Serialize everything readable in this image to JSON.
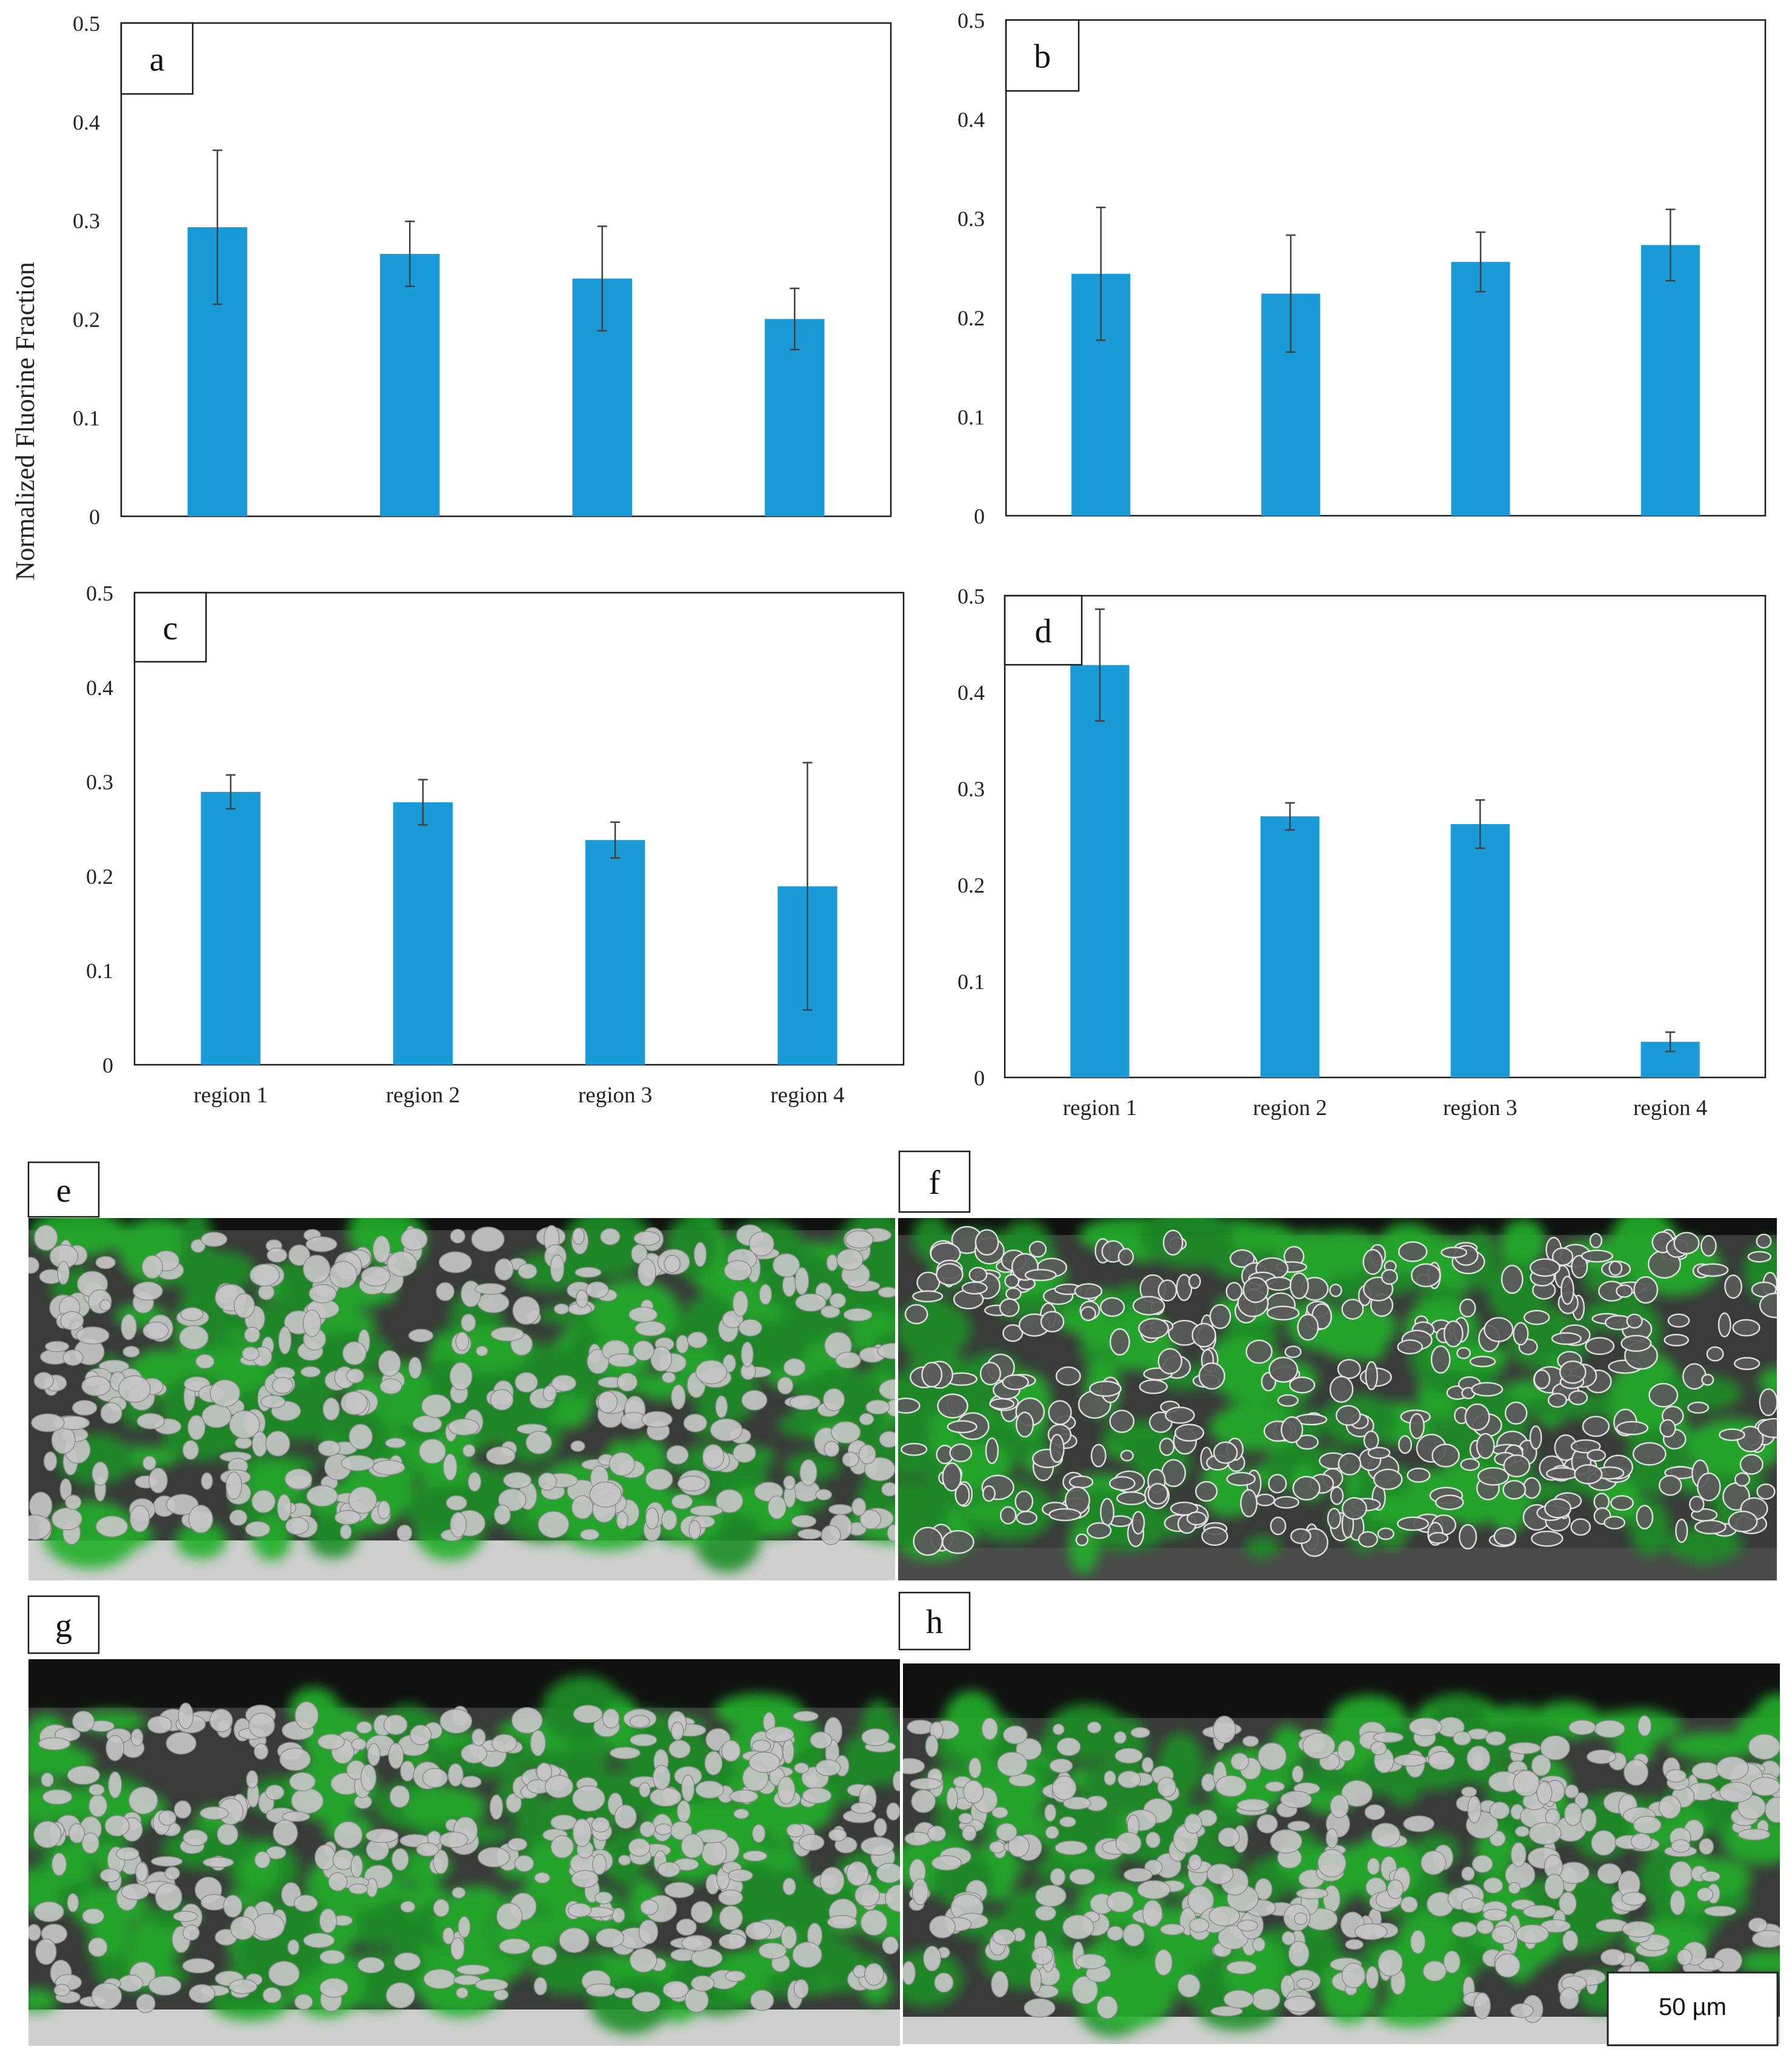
{
  "figure": {
    "ylabel": "Normalized Fluorine Fraction",
    "scalebar_label": "50 µm"
  },
  "colors": {
    "bar": "#1a9ad6",
    "frame": "#1a1a1a",
    "error_bar": "#404040",
    "overlay_green": "#23b02a",
    "particle": "#c6c6c6",
    "sem_background": "#3a3a3a"
  },
  "chart_data": [
    {
      "type": "bar",
      "panel": "a",
      "categories": [
        "region 1",
        "region 2",
        "region 3",
        "region 4"
      ],
      "values": [
        0.293,
        0.266,
        0.241,
        0.2
      ],
      "errors": [
        0.078,
        0.033,
        0.053,
        0.031
      ],
      "ylim": [
        0,
        0.5
      ],
      "yticks": [
        "0",
        "0.1",
        "0.2",
        "0.3",
        "0.4",
        "0.5"
      ],
      "show_category_labels": false,
      "grid": false
    },
    {
      "type": "bar",
      "panel": "b",
      "categories": [
        "region 1",
        "region 2",
        "region 3",
        "region 4"
      ],
      "values": [
        0.244,
        0.224,
        0.256,
        0.273
      ],
      "errors": [
        0.067,
        0.059,
        0.03,
        0.036
      ],
      "ylim": [
        0,
        0.5
      ],
      "yticks": [
        "0",
        "0.1",
        "0.2",
        "0.3",
        "0.4",
        "0.5"
      ],
      "show_category_labels": false,
      "grid": false
    },
    {
      "type": "bar",
      "panel": "c",
      "categories": [
        "region 1",
        "region 2",
        "region 3",
        "region 4"
      ],
      "values": [
        0.289,
        0.278,
        0.238,
        0.189
      ],
      "errors": [
        0.018,
        0.024,
        0.019,
        0.131
      ],
      "ylim": [
        0,
        0.5
      ],
      "yticks": [
        "0",
        "0.1",
        "0.2",
        "0.3",
        "0.4",
        "0.5"
      ],
      "show_category_labels": true,
      "grid": false
    },
    {
      "type": "bar",
      "panel": "d",
      "categories": [
        "region 1",
        "region 2",
        "region 3",
        "region 4"
      ],
      "values": [
        0.428,
        0.271,
        0.263,
        0.037
      ],
      "errors": [
        0.058,
        0.014,
        0.025,
        0.01
      ],
      "ylim": [
        0,
        0.5
      ],
      "yticks": [
        "0",
        "0.1",
        "0.2",
        "0.3",
        "0.4",
        "0.5"
      ],
      "show_category_labels": true,
      "grid": false
    }
  ],
  "images": [
    {
      "panel": "e",
      "style": "light-particles"
    },
    {
      "panel": "f",
      "style": "dark-particles"
    },
    {
      "panel": "g",
      "style": "rough-top"
    },
    {
      "panel": "h",
      "style": "light-particles-scalebar"
    }
  ]
}
